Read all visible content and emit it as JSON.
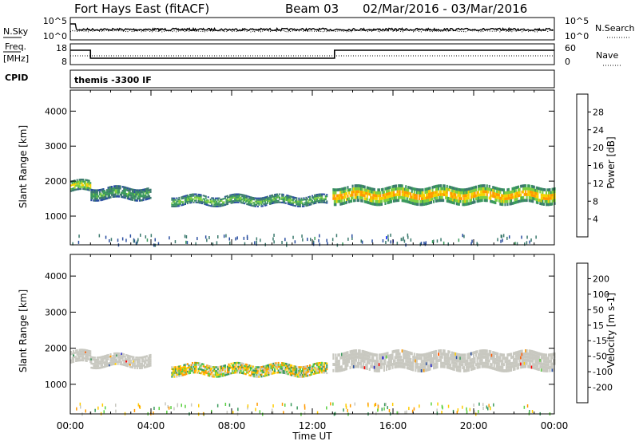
{
  "header": {
    "title": "Fort Hays East (fitACF)",
    "beam": "Beam 03",
    "date_range": "02/Mar/2016 - 03/Mar/2016"
  },
  "noise_panel": {
    "left_label": "N.Sky",
    "left_top_tick": "10^5",
    "left_bottom_tick": "10^0",
    "right_label": "N.Search",
    "right_top_tick": "10^5",
    "right_bottom_tick": "10^0"
  },
  "freq_panel": {
    "left_label_line1": "Freq.",
    "left_label_line2": "[MHz]",
    "left_top_tick": "18",
    "left_bottom_tick": "8",
    "right_label": "Nave",
    "right_top_tick": "60",
    "right_bottom_tick": "0",
    "cpid_label": "CPID",
    "cpid_value": "themis -3300 IF"
  },
  "time_axis": {
    "label": "Time UT",
    "ticks": [
      "00:00",
      "04:00",
      "08:00",
      "12:00",
      "16:00",
      "20:00",
      "00:00"
    ]
  },
  "colors": {
    "power_scale": [
      "#0018ff",
      "#2a4ea0",
      "#3c7a6e",
      "#3a9a5c",
      "#7fd040",
      "#f6d200",
      "#ff9a00",
      "#ff4a00",
      "#ff0000"
    ],
    "velocity_scale": [
      "#ff0000",
      "#ff5a00",
      "#ff9a00",
      "#ffcc00",
      "#c8c8c0",
      "#5ad040",
      "#3a9a5c",
      "#2a4ea0",
      "#1818c8"
    ],
    "ground_scatter": "#c8c8c0"
  },
  "chart_data": [
    {
      "type": "heatmap",
      "title": "Power",
      "xlabel": "Time UT",
      "ylabel": "Slant Range [km]",
      "xlim": [
        0,
        24
      ],
      "ylim": [
        180,
        4600
      ],
      "y_ticks": [
        1000,
        2000,
        3000,
        4000
      ],
      "colorbar": {
        "label": "Power [dB]",
        "range": [
          0,
          32
        ],
        "ticks": [
          "4",
          "8",
          "12",
          "16",
          "20",
          "24",
          "28"
        ]
      },
      "echo_bands": [
        {
          "t_start": 0.0,
          "t_end": 1.0,
          "range_center": 1850,
          "range_width": 320,
          "power": 18
        },
        {
          "t_start": 1.0,
          "t_end": 4.0,
          "range_center": 1650,
          "range_width": 350,
          "power": 12
        },
        {
          "t_start": 5.0,
          "t_end": 12.7,
          "range_center": 1450,
          "range_width": 280,
          "power": 14
        },
        {
          "t_start": 13.0,
          "t_end": 24.0,
          "range_center": 1600,
          "range_width": 500,
          "power": 22
        }
      ]
    },
    {
      "type": "heatmap",
      "title": "Velocity",
      "xlabel": "Time UT",
      "ylabel": "Slant Range [km]",
      "xlim": [
        0,
        24
      ],
      "ylim": [
        180,
        4600
      ],
      "y_ticks": [
        1000,
        2000,
        3000,
        4000
      ],
      "colorbar": {
        "label": "Velocity [m s-1]",
        "range": [
          -250,
          250
        ],
        "ticks": [
          "-200",
          "-100",
          "-50",
          "-15",
          "15",
          "50",
          "100",
          "200"
        ]
      },
      "echo_bands": [
        {
          "t_start": 0.0,
          "t_end": 1.0,
          "range_center": 1750,
          "range_width": 350,
          "velocity": 0,
          "ground_scatter": true
        },
        {
          "t_start": 1.0,
          "t_end": 4.0,
          "range_center": 1650,
          "range_width": 350,
          "velocity": 0,
          "ground_scatter": true
        },
        {
          "t_start": 5.0,
          "t_end": 12.7,
          "range_center": 1400,
          "range_width": 320,
          "velocity": 40,
          "ground_scatter": false
        },
        {
          "t_start": 13.0,
          "t_end": 24.0,
          "range_center": 1650,
          "range_width": 520,
          "velocity": 0,
          "ground_scatter": true
        }
      ]
    }
  ]
}
